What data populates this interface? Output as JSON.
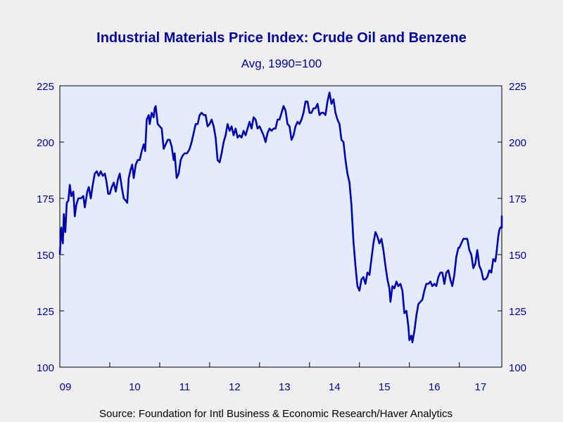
{
  "chart_data": {
    "type": "line",
    "title": "Industrial Materials Price Index: Crude Oil and Benzene",
    "subtitle": "Avg, 1990=100",
    "source": "Source:  Foundation for Intl Business & Economic Research/Haver Analytics",
    "xlabel": "",
    "ylabel": "",
    "ylim": [
      100,
      225
    ],
    "y_ticks": [
      100,
      125,
      150,
      175,
      200,
      225
    ],
    "x_range": [
      2009.0,
      2017.85
    ],
    "x_ticks": [
      {
        "year": 2009,
        "label": "09"
      },
      {
        "year": 2010,
        "label": "10"
      },
      {
        "year": 2011,
        "label": "11"
      },
      {
        "year": 2012,
        "label": "12"
      },
      {
        "year": 2013,
        "label": "13"
      },
      {
        "year": 2014,
        "label": "14"
      },
      {
        "year": 2015,
        "label": "15"
      },
      {
        "year": 2016,
        "label": "16"
      },
      {
        "year": 2017,
        "label": "17"
      }
    ],
    "grid": false,
    "legend": "none",
    "colors": {
      "line": "#0000b3",
      "text": "#0000a0",
      "plot_bg": "#e4ecfc",
      "page_bg": "#efefef"
    },
    "series": [
      {
        "points": [
          [
            2009.0,
            150
          ],
          [
            2009.03,
            162
          ],
          [
            2009.06,
            155
          ],
          [
            2009.08,
            168
          ],
          [
            2009.11,
            160
          ],
          [
            2009.14,
            173
          ],
          [
            2009.17,
            174
          ],
          [
            2009.2,
            181
          ],
          [
            2009.23,
            176
          ],
          [
            2009.27,
            178
          ],
          [
            2009.3,
            167
          ],
          [
            2009.33,
            172
          ],
          [
            2009.37,
            175
          ],
          [
            2009.42,
            175
          ],
          [
            2009.47,
            176
          ],
          [
            2009.5,
            171
          ],
          [
            2009.55,
            178
          ],
          [
            2009.58,
            180
          ],
          [
            2009.62,
            175
          ],
          [
            2009.66,
            181
          ],
          [
            2009.7,
            186
          ],
          [
            2009.74,
            187
          ],
          [
            2009.78,
            185
          ],
          [
            2009.82,
            187
          ],
          [
            2009.86,
            185
          ],
          [
            2009.9,
            186
          ],
          [
            2009.93,
            183
          ],
          [
            2009.97,
            177
          ],
          [
            2010.0,
            177
          ],
          [
            2010.04,
            180
          ],
          [
            2010.08,
            182
          ],
          [
            2010.12,
            178
          ],
          [
            2010.16,
            183
          ],
          [
            2010.2,
            186
          ],
          [
            2010.24,
            180
          ],
          [
            2010.28,
            175
          ],
          [
            2010.32,
            174
          ],
          [
            2010.35,
            173
          ],
          [
            2010.38,
            184
          ],
          [
            2010.42,
            188
          ],
          [
            2010.45,
            190
          ],
          [
            2010.48,
            184
          ],
          [
            2010.52,
            190
          ],
          [
            2010.56,
            192
          ],
          [
            2010.6,
            192
          ],
          [
            2010.64,
            196
          ],
          [
            2010.68,
            199
          ],
          [
            2010.71,
            196
          ],
          [
            2010.74,
            210
          ],
          [
            2010.78,
            212
          ],
          [
            2010.8,
            208
          ],
          [
            2010.84,
            213
          ],
          [
            2010.88,
            211
          ],
          [
            2010.9,
            215
          ],
          [
            2010.92,
            216
          ],
          [
            2010.96,
            208
          ],
          [
            2011.0,
            207
          ],
          [
            2011.04,
            206
          ],
          [
            2011.08,
            197
          ],
          [
            2011.12,
            199
          ],
          [
            2011.16,
            201
          ],
          [
            2011.2,
            201
          ],
          [
            2011.24,
            198
          ],
          [
            2011.28,
            192
          ],
          [
            2011.3,
            195
          ],
          [
            2011.34,
            184
          ],
          [
            2011.38,
            186
          ],
          [
            2011.42,
            192
          ],
          [
            2011.46,
            194
          ],
          [
            2011.5,
            195
          ],
          [
            2011.55,
            195
          ],
          [
            2011.6,
            197
          ],
          [
            2011.64,
            200
          ],
          [
            2011.68,
            204
          ],
          [
            2011.72,
            208
          ],
          [
            2011.76,
            208
          ],
          [
            2011.8,
            212
          ],
          [
            2011.84,
            213
          ],
          [
            2011.88,
            212
          ],
          [
            2011.92,
            212
          ],
          [
            2011.96,
            207
          ],
          [
            2012.0,
            208
          ],
          [
            2012.04,
            210
          ],
          [
            2012.08,
            207
          ],
          [
            2012.12,
            202
          ],
          [
            2012.16,
            192
          ],
          [
            2012.2,
            191
          ],
          [
            2012.24,
            195
          ],
          [
            2012.28,
            200
          ],
          [
            2012.32,
            203
          ],
          [
            2012.36,
            208
          ],
          [
            2012.4,
            205
          ],
          [
            2012.44,
            207
          ],
          [
            2012.48,
            203
          ],
          [
            2012.52,
            206
          ],
          [
            2012.56,
            202
          ],
          [
            2012.6,
            203
          ],
          [
            2012.64,
            202
          ],
          [
            2012.68,
            205
          ],
          [
            2012.72,
            203
          ],
          [
            2012.76,
            206
          ],
          [
            2012.8,
            209
          ],
          [
            2012.84,
            206
          ],
          [
            2012.88,
            211
          ],
          [
            2012.92,
            210
          ],
          [
            2012.96,
            206
          ],
          [
            2013.0,
            207
          ],
          [
            2013.04,
            205
          ],
          [
            2013.08,
            203
          ],
          [
            2013.12,
            200
          ],
          [
            2013.16,
            204
          ],
          [
            2013.2,
            206
          ],
          [
            2013.24,
            205
          ],
          [
            2013.28,
            206
          ],
          [
            2013.32,
            206
          ],
          [
            2013.36,
            210
          ],
          [
            2013.4,
            210
          ],
          [
            2013.44,
            213
          ],
          [
            2013.48,
            216
          ],
          [
            2013.52,
            214
          ],
          [
            2013.56,
            208
          ],
          [
            2013.6,
            207
          ],
          [
            2013.64,
            201
          ],
          [
            2013.68,
            203
          ],
          [
            2013.72,
            207
          ],
          [
            2013.76,
            209
          ],
          [
            2013.8,
            208
          ],
          [
            2013.84,
            210
          ],
          [
            2013.88,
            213
          ],
          [
            2013.92,
            218
          ],
          [
            2013.96,
            218
          ],
          [
            2014.0,
            213
          ],
          [
            2014.04,
            213
          ],
          [
            2014.08,
            215
          ],
          [
            2014.12,
            215
          ],
          [
            2014.16,
            217
          ],
          [
            2014.2,
            212
          ],
          [
            2014.24,
            213
          ],
          [
            2014.28,
            213
          ],
          [
            2014.32,
            212
          ],
          [
            2014.36,
            218
          ],
          [
            2014.4,
            222
          ],
          [
            2014.44,
            217
          ],
          [
            2014.48,
            219
          ],
          [
            2014.52,
            213
          ],
          [
            2014.56,
            210
          ],
          [
            2014.6,
            208
          ],
          [
            2014.64,
            201
          ],
          [
            2014.68,
            200
          ],
          [
            2014.72,
            192
          ],
          [
            2014.76,
            186
          ],
          [
            2014.8,
            182
          ],
          [
            2014.84,
            172
          ],
          [
            2014.88,
            156
          ],
          [
            2014.92,
            145
          ],
          [
            2014.96,
            136
          ],
          [
            2015.0,
            134
          ],
          [
            2015.04,
            139
          ],
          [
            2015.08,
            140
          ],
          [
            2015.12,
            137
          ],
          [
            2015.16,
            142
          ],
          [
            2015.2,
            141
          ],
          [
            2015.24,
            148
          ],
          [
            2015.28,
            155
          ],
          [
            2015.32,
            160
          ],
          [
            2015.36,
            158
          ],
          [
            2015.4,
            155
          ],
          [
            2015.44,
            157
          ],
          [
            2015.48,
            152
          ],
          [
            2015.52,
            145
          ],
          [
            2015.56,
            139
          ],
          [
            2015.6,
            135
          ],
          [
            2015.62,
            129
          ],
          [
            2015.66,
            136
          ],
          [
            2015.7,
            135
          ],
          [
            2015.74,
            138
          ],
          [
            2015.78,
            136
          ],
          [
            2015.82,
            137
          ],
          [
            2015.86,
            134
          ],
          [
            2015.9,
            124
          ],
          [
            2015.94,
            125
          ],
          [
            2015.98,
            118
          ],
          [
            2016.0,
            112
          ],
          [
            2016.04,
            114
          ],
          [
            2016.06,
            111
          ],
          [
            2016.1,
            116
          ],
          [
            2016.14,
            123
          ],
          [
            2016.18,
            128
          ],
          [
            2016.22,
            129
          ],
          [
            2016.26,
            130
          ],
          [
            2016.3,
            134
          ],
          [
            2016.34,
            137
          ],
          [
            2016.38,
            137
          ],
          [
            2016.42,
            138
          ],
          [
            2016.46,
            136
          ],
          [
            2016.5,
            137
          ],
          [
            2016.54,
            136
          ],
          [
            2016.58,
            140
          ],
          [
            2016.62,
            142
          ],
          [
            2016.66,
            142
          ],
          [
            2016.7,
            137
          ],
          [
            2016.74,
            142
          ],
          [
            2016.78,
            143
          ],
          [
            2016.82,
            139
          ],
          [
            2016.86,
            136
          ],
          [
            2016.9,
            141
          ],
          [
            2016.94,
            149
          ],
          [
            2016.98,
            153
          ],
          [
            2017.0,
            153
          ],
          [
            2017.04,
            155
          ],
          [
            2017.08,
            157
          ],
          [
            2017.12,
            157
          ],
          [
            2017.16,
            157
          ],
          [
            2017.2,
            152
          ],
          [
            2017.24,
            150
          ],
          [
            2017.28,
            144
          ],
          [
            2017.32,
            146
          ],
          [
            2017.36,
            152
          ],
          [
            2017.4,
            145
          ],
          [
            2017.44,
            143
          ],
          [
            2017.48,
            139
          ],
          [
            2017.52,
            139
          ],
          [
            2017.56,
            140
          ],
          [
            2017.6,
            143
          ],
          [
            2017.64,
            142
          ],
          [
            2017.68,
            148
          ],
          [
            2017.72,
            147
          ],
          [
            2017.74,
            150
          ],
          [
            2017.76,
            154
          ],
          [
            2017.78,
            158
          ],
          [
            2017.8,
            161
          ],
          [
            2017.82,
            162
          ],
          [
            2017.84,
            162
          ],
          [
            2017.86,
            163
          ],
          [
            2017.88,
            165
          ],
          [
            2017.9,
            165
          ],
          [
            2017.92,
            167
          ],
          [
            2017.94,
            166
          ],
          [
            2017.96,
            162
          ],
          [
            2017.98,
            164
          ],
          [
            2018.0,
            163
          ]
        ]
      }
    ]
  }
}
